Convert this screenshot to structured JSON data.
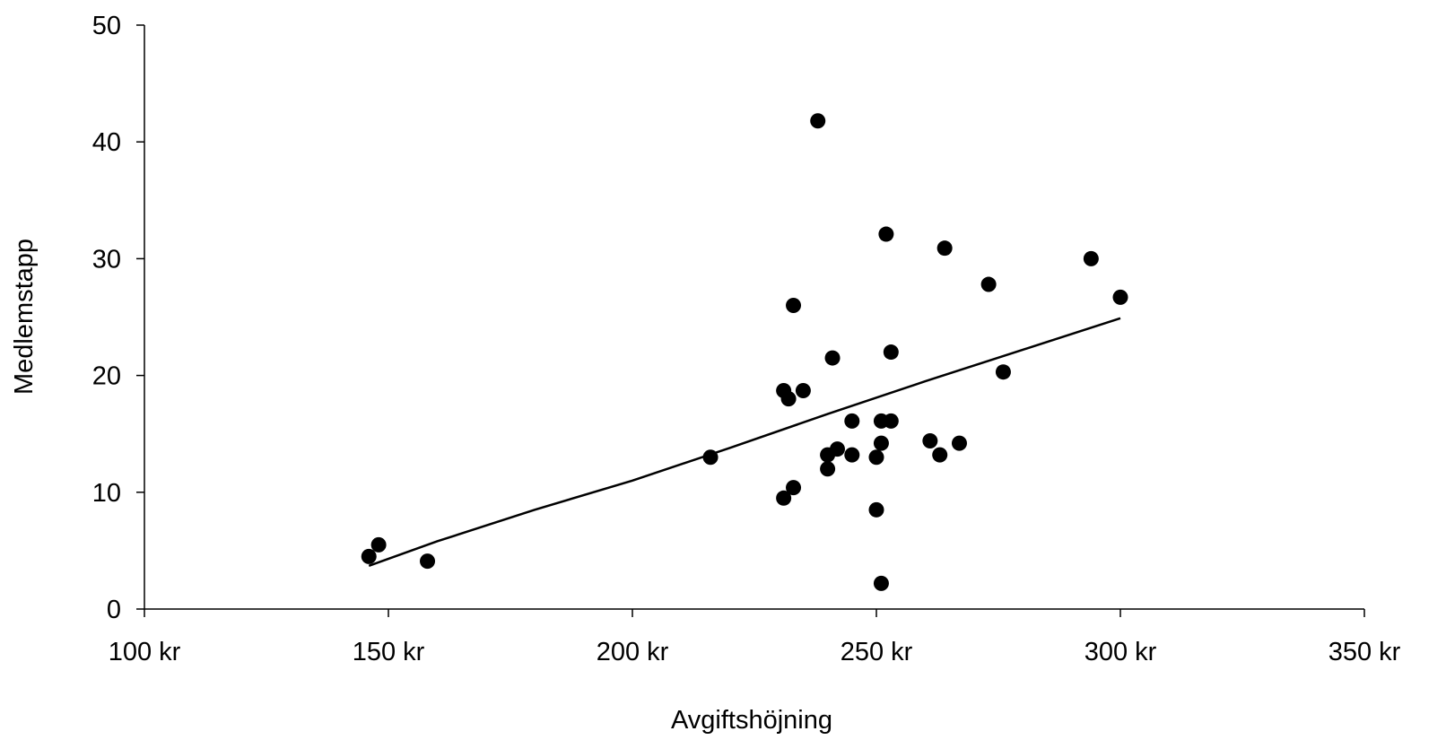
{
  "chart_data": {
    "type": "scatter",
    "xlabel": "Avgiftshöjning",
    "ylabel": "Medlemstapp",
    "xlim": [
      100,
      350
    ],
    "ylim": [
      0,
      50
    ],
    "x_ticks": [
      100,
      150,
      200,
      250,
      300,
      350
    ],
    "x_tick_labels": [
      "100 kr",
      "150 kr",
      "200 kr",
      "250 kr",
      "300 kr",
      "350 kr"
    ],
    "y_ticks": [
      0,
      10,
      20,
      30,
      40,
      50
    ],
    "y_tick_labels": [
      "0",
      "10",
      "20",
      "30",
      "40",
      "50"
    ],
    "grid": false,
    "legend": "none",
    "colors": {
      "points": "#000000",
      "trend_line": "#000000",
      "axes": "#000000"
    },
    "series": [
      {
        "kind": "scatter",
        "points": [
          {
            "x": 146,
            "y": 4.5
          },
          {
            "x": 148,
            "y": 5.5
          },
          {
            "x": 158,
            "y": 4.1
          },
          {
            "x": 216,
            "y": 13.0
          },
          {
            "x": 231,
            "y": 9.5
          },
          {
            "x": 231,
            "y": 18.7
          },
          {
            "x": 232,
            "y": 18.0
          },
          {
            "x": 233,
            "y": 10.4
          },
          {
            "x": 233,
            "y": 26.0
          },
          {
            "x": 235,
            "y": 18.7
          },
          {
            "x": 238,
            "y": 41.8
          },
          {
            "x": 240,
            "y": 13.2
          },
          {
            "x": 240,
            "y": 12.0
          },
          {
            "x": 241,
            "y": 21.5
          },
          {
            "x": 242,
            "y": 13.7
          },
          {
            "x": 245,
            "y": 16.1
          },
          {
            "x": 245,
            "y": 13.2
          },
          {
            "x": 250,
            "y": 8.5
          },
          {
            "x": 250,
            "y": 13.0
          },
          {
            "x": 251,
            "y": 16.1
          },
          {
            "x": 251,
            "y": 14.2
          },
          {
            "x": 251,
            "y": 2.2
          },
          {
            "x": 252,
            "y": 32.1
          },
          {
            "x": 253,
            "y": 22.0
          },
          {
            "x": 253,
            "y": 16.1
          },
          {
            "x": 261,
            "y": 14.4
          },
          {
            "x": 263,
            "y": 13.2
          },
          {
            "x": 264,
            "y": 30.9
          },
          {
            "x": 267,
            "y": 14.2
          },
          {
            "x": 273,
            "y": 27.8
          },
          {
            "x": 276,
            "y": 20.3
          },
          {
            "x": 294,
            "y": 30.0
          },
          {
            "x": 300,
            "y": 26.7
          }
        ]
      },
      {
        "kind": "line",
        "points": [
          {
            "x": 146,
            "y": 3.7
          },
          {
            "x": 160,
            "y": 5.8
          },
          {
            "x": 180,
            "y": 8.5
          },
          {
            "x": 200,
            "y": 11.0
          },
          {
            "x": 220,
            "y": 13.8
          },
          {
            "x": 240,
            "y": 16.7
          },
          {
            "x": 260,
            "y": 19.5
          },
          {
            "x": 280,
            "y": 22.2
          },
          {
            "x": 300,
            "y": 24.9
          }
        ]
      }
    ]
  }
}
